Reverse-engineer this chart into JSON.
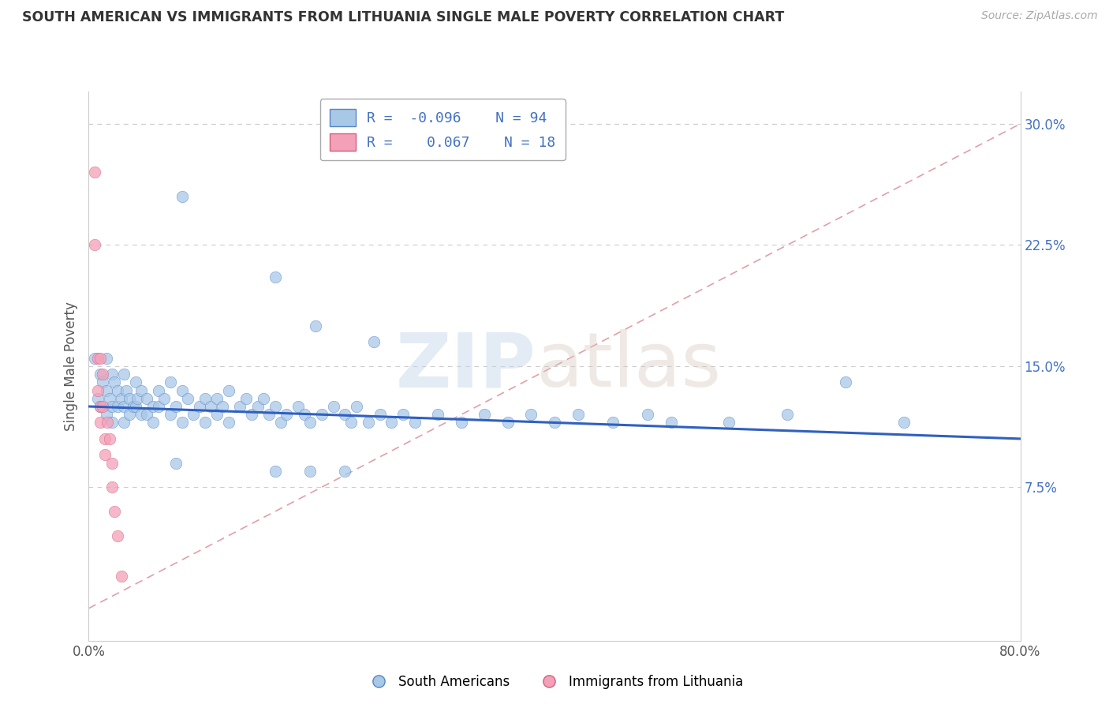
{
  "title": "SOUTH AMERICAN VS IMMIGRANTS FROM LITHUANIA SINGLE MALE POVERTY CORRELATION CHART",
  "source": "Source: ZipAtlas.com",
  "ylabel": "Single Male Poverty",
  "xlim": [
    0.0,
    0.8
  ],
  "ylim": [
    -0.02,
    0.32
  ],
  "yticks": [
    0.075,
    0.15,
    0.225,
    0.3
  ],
  "ytick_labels_right": [
    "7.5%",
    "15.0%",
    "22.5%",
    "30.0%"
  ],
  "xticks": [
    0.0,
    0.8
  ],
  "xtick_labels": [
    "0.0%",
    "80.0%"
  ],
  "color_blue": "#a8c8e8",
  "color_pink": "#f4a0b8",
  "edge_blue": "#5585c5",
  "edge_pink": "#d06080",
  "trendline_blue_color": "#3060c0",
  "trendline_pink_color": "#d08090",
  "grid_color": "#cccccc",
  "blue_scatter": [
    [
      0.005,
      0.155
    ],
    [
      0.008,
      0.13
    ],
    [
      0.01,
      0.145
    ],
    [
      0.01,
      0.125
    ],
    [
      0.012,
      0.14
    ],
    [
      0.015,
      0.155
    ],
    [
      0.015,
      0.135
    ],
    [
      0.015,
      0.12
    ],
    [
      0.018,
      0.13
    ],
    [
      0.02,
      0.145
    ],
    [
      0.02,
      0.125
    ],
    [
      0.02,
      0.115
    ],
    [
      0.022,
      0.14
    ],
    [
      0.025,
      0.135
    ],
    [
      0.025,
      0.125
    ],
    [
      0.028,
      0.13
    ],
    [
      0.03,
      0.145
    ],
    [
      0.03,
      0.125
    ],
    [
      0.03,
      0.115
    ],
    [
      0.032,
      0.135
    ],
    [
      0.035,
      0.13
    ],
    [
      0.035,
      0.12
    ],
    [
      0.038,
      0.125
    ],
    [
      0.04,
      0.14
    ],
    [
      0.04,
      0.125
    ],
    [
      0.042,
      0.13
    ],
    [
      0.045,
      0.135
    ],
    [
      0.045,
      0.12
    ],
    [
      0.05,
      0.13
    ],
    [
      0.05,
      0.12
    ],
    [
      0.055,
      0.125
    ],
    [
      0.055,
      0.115
    ],
    [
      0.06,
      0.135
    ],
    [
      0.06,
      0.125
    ],
    [
      0.065,
      0.13
    ],
    [
      0.07,
      0.14
    ],
    [
      0.07,
      0.12
    ],
    [
      0.075,
      0.125
    ],
    [
      0.08,
      0.135
    ],
    [
      0.08,
      0.115
    ],
    [
      0.085,
      0.13
    ],
    [
      0.09,
      0.12
    ],
    [
      0.095,
      0.125
    ],
    [
      0.1,
      0.13
    ],
    [
      0.1,
      0.115
    ],
    [
      0.105,
      0.125
    ],
    [
      0.11,
      0.13
    ],
    [
      0.11,
      0.12
    ],
    [
      0.115,
      0.125
    ],
    [
      0.12,
      0.135
    ],
    [
      0.12,
      0.115
    ],
    [
      0.13,
      0.125
    ],
    [
      0.135,
      0.13
    ],
    [
      0.14,
      0.12
    ],
    [
      0.145,
      0.125
    ],
    [
      0.15,
      0.13
    ],
    [
      0.155,
      0.12
    ],
    [
      0.16,
      0.125
    ],
    [
      0.165,
      0.115
    ],
    [
      0.17,
      0.12
    ],
    [
      0.18,
      0.125
    ],
    [
      0.185,
      0.12
    ],
    [
      0.19,
      0.115
    ],
    [
      0.2,
      0.12
    ],
    [
      0.21,
      0.125
    ],
    [
      0.22,
      0.12
    ],
    [
      0.225,
      0.115
    ],
    [
      0.23,
      0.125
    ],
    [
      0.24,
      0.115
    ],
    [
      0.25,
      0.12
    ],
    [
      0.26,
      0.115
    ],
    [
      0.27,
      0.12
    ],
    [
      0.28,
      0.115
    ],
    [
      0.3,
      0.12
    ],
    [
      0.32,
      0.115
    ],
    [
      0.34,
      0.12
    ],
    [
      0.36,
      0.115
    ],
    [
      0.38,
      0.12
    ],
    [
      0.4,
      0.115
    ],
    [
      0.42,
      0.12
    ],
    [
      0.45,
      0.115
    ],
    [
      0.48,
      0.12
    ],
    [
      0.5,
      0.115
    ],
    [
      0.55,
      0.115
    ],
    [
      0.6,
      0.12
    ],
    [
      0.65,
      0.14
    ],
    [
      0.7,
      0.115
    ],
    [
      0.08,
      0.255
    ],
    [
      0.16,
      0.205
    ],
    [
      0.195,
      0.175
    ],
    [
      0.245,
      0.165
    ],
    [
      0.075,
      0.09
    ],
    [
      0.16,
      0.085
    ],
    [
      0.19,
      0.085
    ],
    [
      0.22,
      0.085
    ]
  ],
  "pink_scatter": [
    [
      0.005,
      0.27
    ],
    [
      0.005,
      0.225
    ],
    [
      0.008,
      0.155
    ],
    [
      0.008,
      0.135
    ],
    [
      0.01,
      0.155
    ],
    [
      0.01,
      0.125
    ],
    [
      0.01,
      0.115
    ],
    [
      0.012,
      0.145
    ],
    [
      0.012,
      0.125
    ],
    [
      0.014,
      0.105
    ],
    [
      0.014,
      0.095
    ],
    [
      0.016,
      0.115
    ],
    [
      0.018,
      0.105
    ],
    [
      0.02,
      0.09
    ],
    [
      0.02,
      0.075
    ],
    [
      0.022,
      0.06
    ],
    [
      0.025,
      0.045
    ],
    [
      0.028,
      0.02
    ]
  ],
  "blue_trend_x": [
    0.0,
    0.8
  ],
  "blue_trend_y": [
    0.125,
    0.105
  ],
  "pink_trend_x": [
    0.0,
    0.03
  ],
  "pink_trend_y": [
    0.13,
    0.15
  ],
  "diag_line_x": [
    0.0,
    0.8
  ],
  "diag_line_y": [
    0.0,
    0.3
  ]
}
